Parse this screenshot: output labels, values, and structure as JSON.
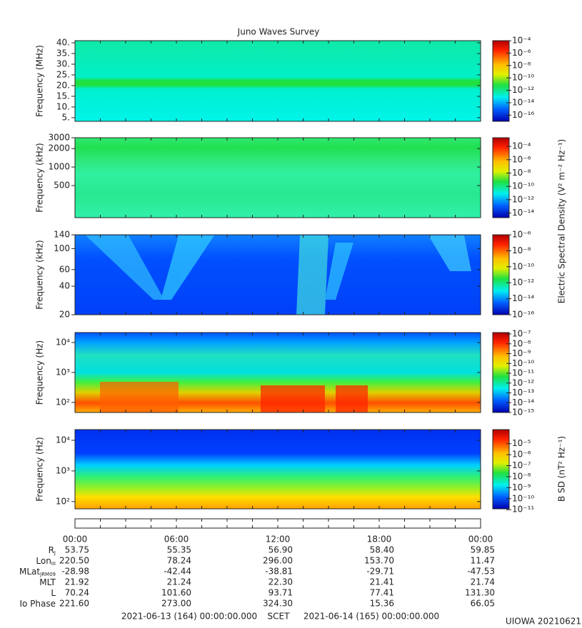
{
  "chart_data": [
    {
      "type": "spectrogram",
      "title": "Juno Waves Survey",
      "ylabel": "Frequency (MHz)",
      "yscale": "linear",
      "ylim": [
        3.3,
        41
      ],
      "yticks": [
        {
          "value": 5,
          "label": "5."
        },
        {
          "value": 10,
          "label": "10."
        },
        {
          "value": 15,
          "label": "15."
        },
        {
          "value": 20,
          "label": "20."
        },
        {
          "value": 25,
          "label": "25."
        },
        {
          "value": 30,
          "label": "30."
        },
        {
          "value": 35,
          "label": "35."
        },
        {
          "value": 40,
          "label": "40."
        }
      ],
      "clim": [
        1e-17,
        0.0001
      ],
      "cticks": [
        {
          "value": 0.0001,
          "label": "10⁻⁴"
        },
        {
          "value": 1e-06,
          "label": "10⁻⁶"
        },
        {
          "value": 1e-08,
          "label": "10⁻⁸"
        },
        {
          "value": 1e-10,
          "label": "10⁻¹⁰"
        },
        {
          "value": 1e-12,
          "label": "10⁻¹²"
        },
        {
          "value": 1e-14,
          "label": "10⁻¹⁴"
        },
        {
          "value": 1e-16,
          "label": "10⁻¹⁶"
        }
      ]
    },
    {
      "type": "spectrogram",
      "ylabel": "Frequency (kHz)",
      "yscale": "log",
      "ylim": [
        150,
        3000
      ],
      "yticks": [
        500,
        1000,
        2000,
        3000
      ],
      "clim": [
        2e-15,
        0.002
      ],
      "cticks": [
        {
          "value": 0.0001,
          "label": "10⁻⁴"
        },
        {
          "value": 1e-06,
          "label": "10⁻⁶"
        },
        {
          "value": 1e-08,
          "label": "10⁻⁸"
        },
        {
          "value": 1e-10,
          "label": "10⁻¹⁰"
        },
        {
          "value": 1e-12,
          "label": "10⁻¹²"
        },
        {
          "value": 1e-14,
          "label": "10⁻¹⁴"
        }
      ],
      "colorbar_label": "Electric Spectral Density (V² m⁻² Hz⁻¹)"
    },
    {
      "type": "spectrogram",
      "ylabel": "Frequency (kHz)",
      "yscale": "log",
      "ylim": [
        20,
        140
      ],
      "yticks": [
        20,
        40,
        60,
        100,
        140
      ],
      "clim": [
        1e-16,
        1e-06
      ],
      "cticks": [
        {
          "value": 1e-06,
          "label": "10⁻⁶"
        },
        {
          "value": 1e-08,
          "label": "10⁻⁸"
        },
        {
          "value": 1e-10,
          "label": "10⁻¹⁰"
        },
        {
          "value": 1e-12,
          "label": "10⁻¹²"
        },
        {
          "value": 1e-14,
          "label": "10⁻¹⁴"
        },
        {
          "value": 1e-16,
          "label": "10⁻¹⁶"
        }
      ]
    },
    {
      "type": "spectrogram",
      "ylabel": "Frequency (Hz)",
      "yscale": "log",
      "ylim": [
        46,
        21500
      ],
      "yticks": [
        {
          "value": 100,
          "label": "10²"
        },
        {
          "value": 1000,
          "label": "10³"
        },
        {
          "value": 10000,
          "label": "10⁴"
        }
      ],
      "clim": [
        1e-15,
        1.4e-07
      ],
      "cticks": [
        {
          "value": 1e-07,
          "label": "10⁻⁷"
        },
        {
          "value": 1e-08,
          "label": "10⁻⁸"
        },
        {
          "value": 1e-09,
          "label": "10⁻⁹"
        },
        {
          "value": 1e-10,
          "label": "10⁻¹⁰"
        },
        {
          "value": 1e-11,
          "label": "10⁻¹¹"
        },
        {
          "value": 1e-12,
          "label": "10⁻¹²"
        },
        {
          "value": 1e-13,
          "label": "10⁻¹³"
        },
        {
          "value": 1e-14,
          "label": "10⁻¹⁴"
        },
        {
          "value": 1e-15,
          "label": "10⁻¹⁵"
        }
      ]
    },
    {
      "type": "spectrogram",
      "ylabel": "Frequency (Hz)",
      "yscale": "log",
      "ylim": [
        58,
        22300
      ],
      "yticks": [
        {
          "value": 100,
          "label": "10²"
        },
        {
          "value": 1000,
          "label": "10³"
        },
        {
          "value": 10000,
          "label": "10⁴"
        }
      ],
      "clim": [
        1.2e-11,
        0.00019
      ],
      "cticks": [
        {
          "value": 1e-05,
          "label": "10⁻⁵"
        },
        {
          "value": 1e-06,
          "label": "10⁻⁶"
        },
        {
          "value": 1e-07,
          "label": "10⁻⁷"
        },
        {
          "value": 1e-08,
          "label": "10⁻⁸"
        },
        {
          "value": 1e-09,
          "label": "10⁻⁹"
        },
        {
          "value": 1e-10,
          "label": "10⁻¹⁰"
        },
        {
          "value": 1e-11,
          "label": "10⁻¹¹"
        }
      ],
      "colorbar_label": "B SD (nT² Hz⁻¹)"
    }
  ],
  "ephemeris": {
    "times": [
      "00:00",
      "06:00",
      "12:00",
      "18:00",
      "00:00"
    ],
    "rows": [
      {
        "label": "R",
        "sub": "J",
        "values": [
          "53.75",
          "55.35",
          "56.90",
          "58.40",
          "59.85"
        ]
      },
      {
        "label": "Lon",
        "sub": "III",
        "values": [
          "220.50",
          "78.24",
          "296.00",
          "153.70",
          "11.47"
        ]
      },
      {
        "label": "MLat",
        "sub": "JRM09",
        "values": [
          "-28.98",
          "-42.44",
          "-38.81",
          "-29.71",
          "-47.53"
        ]
      },
      {
        "label": "MLT",
        "values": [
          "21.92",
          "21.24",
          "22.30",
          "21.41",
          "21.74"
        ]
      },
      {
        "label": "L",
        "values": [
          "70.24",
          "101.60",
          "93.71",
          "77.41",
          "131.30"
        ]
      },
      {
        "label": "Io Phase",
        "values": [
          "221.60",
          "273.00",
          "324.30",
          "15.36",
          "66.05"
        ]
      }
    ]
  },
  "footer": {
    "start": "2021-06-13 (164) 00:00:00.000",
    "center": "SCET",
    "end": "2021-06-14 (165) 00:00:00.000",
    "credit": "UIOWA 20210621"
  }
}
